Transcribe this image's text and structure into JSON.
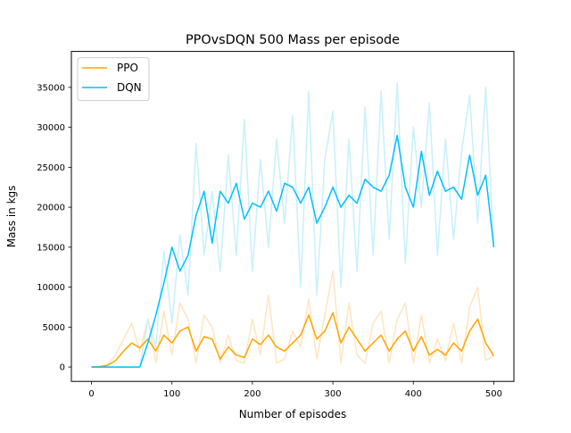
{
  "chart_data": {
    "type": "line",
    "title": "PPOvsDQN 500 Mass per episode",
    "xlabel": "Number of episodes",
    "ylabel": "Mass in kgs",
    "xlim": [
      -25,
      525
    ],
    "ylim": [
      -1800,
      39500
    ],
    "xticks": [
      0,
      100,
      200,
      300,
      400,
      500
    ],
    "yticks": [
      0,
      5000,
      10000,
      15000,
      20000,
      25000,
      30000,
      35000
    ],
    "xtick_labels": [
      "0",
      "100",
      "200",
      "300",
      "400",
      "500"
    ],
    "ytick_labels": [
      "0",
      "5000",
      "10000",
      "15000",
      "20000",
      "25000",
      "30000",
      "35000"
    ],
    "grid": false,
    "legend_position": "top-left",
    "series": [
      {
        "name": "PPO",
        "color": "#FFA500",
        "raw_color": "#FFE5BF",
        "x": [
          0,
          10,
          20,
          30,
          40,
          50,
          60,
          70,
          80,
          90,
          100,
          110,
          120,
          130,
          140,
          150,
          160,
          170,
          180,
          190,
          200,
          210,
          220,
          230,
          240,
          250,
          260,
          270,
          280,
          290,
          300,
          310,
          320,
          330,
          340,
          350,
          360,
          370,
          380,
          390,
          400,
          410,
          420,
          430,
          440,
          450,
          460,
          470,
          480,
          490,
          500
        ],
        "values": [
          0,
          50,
          200,
          800,
          2000,
          3000,
          2400,
          3500,
          2000,
          4000,
          3000,
          4500,
          5000,
          2000,
          3800,
          3500,
          1000,
          2500,
          1500,
          1200,
          3500,
          2800,
          4000,
          2500,
          2000,
          3000,
          4000,
          6500,
          3500,
          4500,
          6800,
          3000,
          5000,
          3500,
          2000,
          3000,
          4000,
          2000,
          3500,
          4500,
          2000,
          3800,
          1500,
          2200,
          1500,
          3000,
          2000,
          4500,
          6000,
          3000,
          1400
        ],
        "raw_values": [
          0,
          100,
          300,
          1500,
          3500,
          5500,
          2000,
          6000,
          500,
          7000,
          1500,
          8000,
          6000,
          500,
          6500,
          5000,
          500,
          4000,
          800,
          500,
          6000,
          1500,
          9000,
          500,
          1000,
          4500,
          2500,
          8500,
          1000,
          6500,
          12000,
          500,
          8000,
          1500,
          500,
          5500,
          7000,
          500,
          6000,
          8000,
          500,
          6500,
          500,
          3500,
          800,
          5500,
          500,
          7500,
          10000,
          800,
          1500
        ]
      },
      {
        "name": "DQN",
        "color": "#00BFFF",
        "raw_color": "#C8F0FB",
        "x": [
          0,
          10,
          20,
          30,
          40,
          50,
          60,
          70,
          80,
          90,
          100,
          110,
          120,
          130,
          140,
          150,
          160,
          170,
          180,
          190,
          200,
          210,
          220,
          230,
          240,
          250,
          260,
          270,
          280,
          290,
          300,
          310,
          320,
          330,
          340,
          350,
          360,
          370,
          380,
          390,
          400,
          410,
          420,
          430,
          440,
          450,
          460,
          470,
          480,
          490,
          500
        ],
        "values": [
          0,
          0,
          0,
          0,
          0,
          0,
          0,
          3000,
          6500,
          10500,
          15000,
          12000,
          14000,
          19000,
          22000,
          15500,
          22000,
          20500,
          23000,
          18500,
          20500,
          20000,
          22000,
          19500,
          23000,
          22500,
          20500,
          22500,
          18000,
          20000,
          22500,
          20000,
          21500,
          20500,
          23500,
          22500,
          22000,
          24000,
          29000,
          22500,
          20000,
          27000,
          21500,
          24500,
          22000,
          22500,
          21000,
          26500,
          21500,
          24000,
          15000
        ],
        "raw_values": [
          0,
          0,
          0,
          0,
          0,
          0,
          0,
          6000,
          2500,
          14500,
          5500,
          16500,
          9000,
          28000,
          14000,
          22000,
          12000,
          26500,
          14000,
          31000,
          12000,
          26000,
          15000,
          28500,
          18000,
          31500,
          10000,
          34500,
          9000,
          26000,
          32000,
          10000,
          28500,
          12000,
          32500,
          14000,
          34500,
          16000,
          35500,
          13000,
          30000,
          20000,
          33000,
          14000,
          28500,
          16000,
          27000,
          34000,
          18000,
          35000,
          15000
        ]
      }
    ]
  }
}
